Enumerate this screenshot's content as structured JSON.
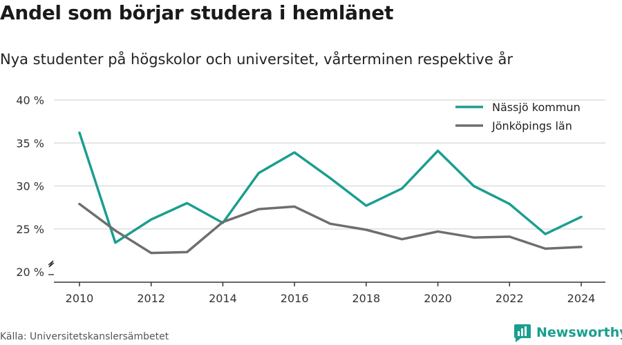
{
  "title": "Andel som börjar studera i hemlänet",
  "subtitle": "Nya studenter på högskolor och universitet, vårterminen respektive år",
  "source": "Källa: Universitetskanslersämbetet",
  "brand": {
    "name": "Newsworthy",
    "logo_icon": "bar-chart-logo-icon"
  },
  "colors": {
    "nassjo": "#1a9e8f",
    "jonkoping": "#6e6e6e",
    "grid": "#dddddd",
    "axis": "#333333"
  },
  "chart_data": {
    "type": "line",
    "x": [
      2010,
      2011,
      2012,
      2013,
      2014,
      2015,
      2016,
      2017,
      2018,
      2019,
      2020,
      2021,
      2022,
      2023,
      2024
    ],
    "x_ticks": [
      "2010",
      "2012",
      "2014",
      "2016",
      "2018",
      "2020",
      "2022",
      "2024"
    ],
    "y_ticks": [
      "20 %",
      "25 %",
      "30 %",
      "35 %",
      "40 %"
    ],
    "ylim": [
      20,
      40
    ],
    "xlim": [
      2010,
      2024
    ],
    "y_axis_break": true,
    "grid": "horizontal",
    "legend_position": "top-right",
    "series": [
      {
        "name": "Nässjö kommun",
        "color": "#1a9e8f",
        "values": [
          36.2,
          23.4,
          26.1,
          28.0,
          25.7,
          31.5,
          33.9,
          30.9,
          27.7,
          29.7,
          34.1,
          30.0,
          27.9,
          24.4,
          26.4
        ]
      },
      {
        "name": "Jönköpings län",
        "color": "#6e6e6e",
        "values": [
          27.9,
          24.8,
          22.2,
          22.3,
          25.8,
          27.3,
          27.6,
          25.6,
          24.9,
          23.8,
          24.7,
          24.0,
          24.1,
          22.7,
          22.9
        ]
      }
    ]
  }
}
